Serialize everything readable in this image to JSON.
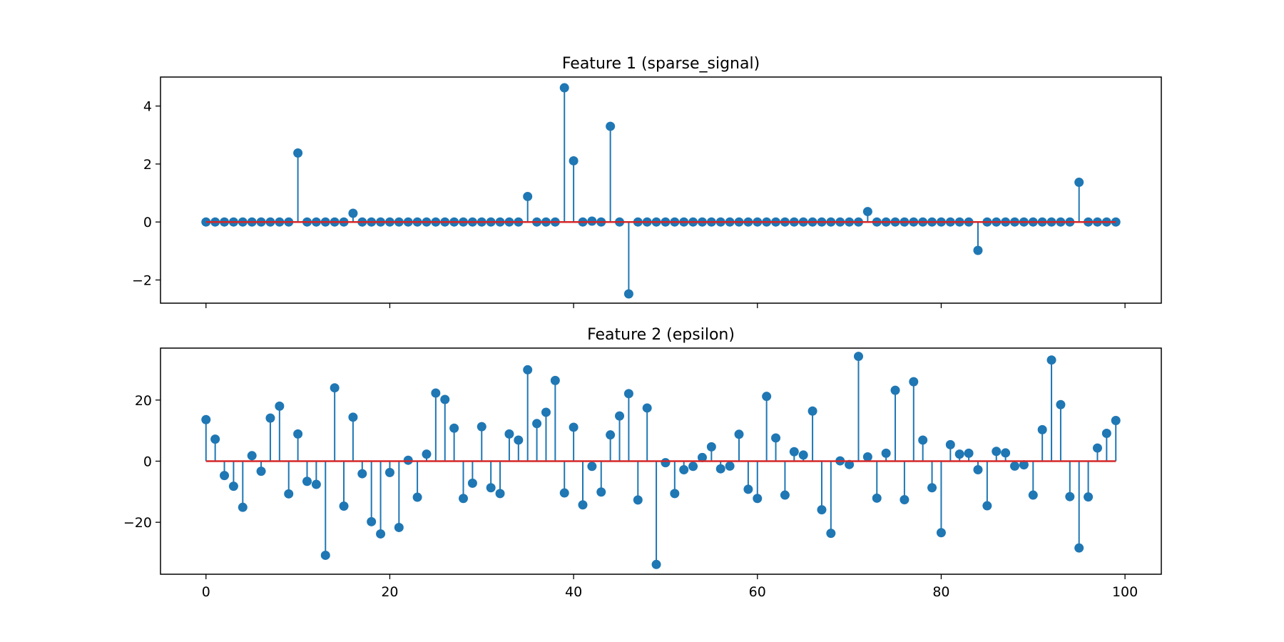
{
  "colors": {
    "stem": "#1f77b4",
    "baseline": "#d62728",
    "axis": "#000000",
    "background": "#ffffff"
  },
  "chart_data": [
    {
      "type": "stem",
      "title": "Feature 1 (sparse_signal)",
      "xlabel": "",
      "ylabel": "",
      "xlim": [
        -4.95,
        103.95
      ],
      "ylim": [
        -2.8,
        5.0
      ],
      "yticks": [
        -2,
        0,
        2,
        4
      ],
      "ytick_labels": [
        "−2",
        "0",
        "2",
        "4"
      ],
      "xticks": [
        0,
        20,
        40,
        60,
        80,
        100
      ],
      "xtick_labels_visible": false,
      "baseline": 0,
      "x": [
        0,
        1,
        2,
        3,
        4,
        5,
        6,
        7,
        8,
        9,
        10,
        11,
        12,
        13,
        14,
        15,
        16,
        17,
        18,
        19,
        20,
        21,
        22,
        23,
        24,
        25,
        26,
        27,
        28,
        29,
        30,
        31,
        32,
        33,
        34,
        35,
        36,
        37,
        38,
        39,
        40,
        41,
        42,
        43,
        44,
        45,
        46,
        47,
        48,
        49,
        50,
        51,
        52,
        53,
        54,
        55,
        56,
        57,
        58,
        59,
        60,
        61,
        62,
        63,
        64,
        65,
        66,
        67,
        68,
        69,
        70,
        71,
        72,
        73,
        74,
        75,
        76,
        77,
        78,
        79,
        80,
        81,
        82,
        83,
        84,
        85,
        86,
        87,
        88,
        89,
        90,
        91,
        92,
        93,
        94,
        95,
        96,
        97,
        98,
        99
      ],
      "values": [
        0,
        0,
        0,
        0,
        0,
        0,
        0,
        0,
        0,
        0,
        2.38,
        0,
        0,
        0,
        0,
        0,
        0.3,
        0,
        0,
        0,
        0,
        0,
        0,
        0,
        0,
        0,
        0,
        0,
        0,
        0,
        0,
        0,
        0,
        0,
        0,
        0.88,
        0,
        0,
        0,
        4.63,
        2.11,
        0,
        0.03,
        0,
        3.3,
        0,
        -2.48,
        0,
        0,
        0,
        0,
        0,
        0,
        0,
        0,
        0,
        0,
        0,
        0,
        0,
        0,
        0,
        0,
        0,
        0,
        0,
        0,
        0,
        0,
        0,
        0,
        0,
        0.36,
        0,
        0,
        0,
        0,
        0,
        0,
        0,
        0,
        0,
        0,
        0,
        -0.98,
        0,
        0,
        0,
        0,
        0,
        0,
        0,
        0,
        0,
        0,
        1.37,
        0,
        0,
        0,
        0
      ]
    },
    {
      "type": "stem",
      "title": "Feature 2 (epsilon)",
      "xlabel": "",
      "ylabel": "",
      "xlim": [
        -4.95,
        103.95
      ],
      "ylim": [
        -37,
        37
      ],
      "yticks": [
        -20,
        0,
        20
      ],
      "ytick_labels": [
        "−20",
        "0",
        "20"
      ],
      "xticks": [
        0,
        20,
        40,
        60,
        80,
        100
      ],
      "xtick_labels": [
        "0",
        "20",
        "40",
        "60",
        "80",
        "100"
      ],
      "baseline": 0,
      "x": [
        0,
        1,
        2,
        3,
        4,
        5,
        6,
        7,
        8,
        9,
        10,
        11,
        12,
        13,
        14,
        15,
        16,
        17,
        18,
        19,
        20,
        21,
        22,
        23,
        24,
        25,
        26,
        27,
        28,
        29,
        30,
        31,
        32,
        33,
        34,
        35,
        36,
        37,
        38,
        39,
        40,
        41,
        42,
        43,
        44,
        45,
        46,
        47,
        48,
        49,
        50,
        51,
        52,
        53,
        54,
        55,
        56,
        57,
        58,
        59,
        60,
        61,
        62,
        63,
        64,
        65,
        66,
        67,
        68,
        69,
        70,
        71,
        72,
        73,
        74,
        75,
        76,
        77,
        78,
        79,
        80,
        81,
        82,
        83,
        84,
        85,
        86,
        87,
        88,
        89,
        90,
        91,
        92,
        93,
        94,
        95,
        96,
        97,
        98,
        99
      ],
      "values": [
        13.6,
        7.2,
        -4.7,
        -8.2,
        -15.1,
        1.8,
        -3.3,
        14.1,
        18.0,
        -10.7,
        8.9,
        -6.6,
        -7.6,
        -30.8,
        24.0,
        -14.7,
        14.4,
        -4.1,
        -19.8,
        -23.8,
        -3.7,
        -21.7,
        0.3,
        -11.8,
        2.3,
        22.3,
        20.2,
        10.8,
        -12.2,
        -7.2,
        11.3,
        -8.7,
        -10.6,
        8.9,
        6.9,
        29.9,
        12.3,
        16.0,
        26.4,
        -10.4,
        11.1,
        -14.3,
        -1.7,
        -10.1,
        8.6,
        14.8,
        22.1,
        -12.7,
        17.4,
        -33.8,
        -0.5,
        -10.6,
        -2.8,
        -1.7,
        1.2,
        4.7,
        -2.5,
        -1.6,
        8.8,
        -9.2,
        -12.2,
        21.2,
        7.6,
        -11.1,
        3.1,
        2.0,
        16.4,
        -15.9,
        -23.6,
        0.1,
        -1.1,
        34.3,
        1.4,
        -12.1,
        2.6,
        23.2,
        -12.6,
        26.0,
        6.9,
        -8.7,
        -23.4,
        5.4,
        2.3,
        2.6,
        -2.8,
        -14.6,
        3.2,
        2.7,
        -1.6,
        -1.2,
        -11.1,
        10.3,
        33.1,
        18.5,
        -11.6,
        -28.4,
        -11.7,
        4.3,
        9.1,
        13.3
      ]
    }
  ]
}
